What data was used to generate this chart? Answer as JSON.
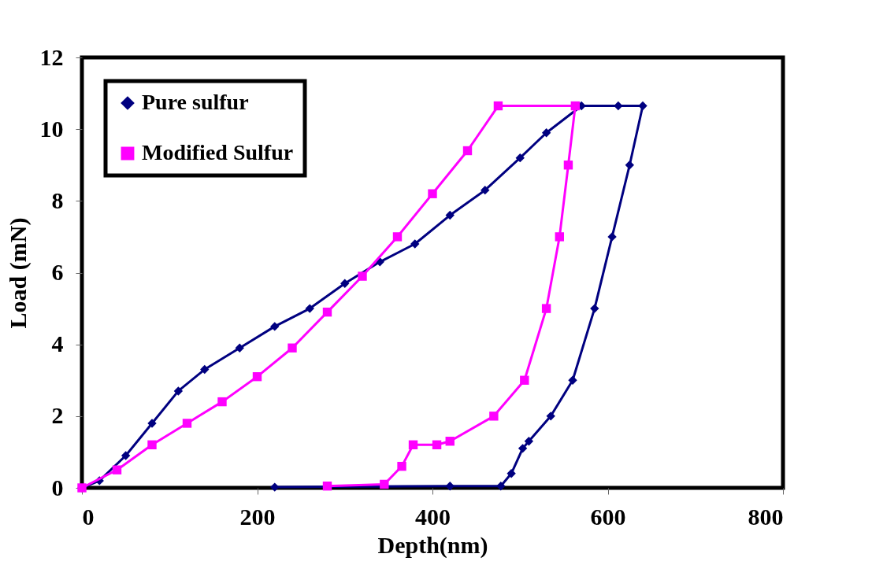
{
  "chart_data": {
    "type": "line",
    "xlabel": "Depth(nm)",
    "ylabel": "Load (mN)",
    "xlim": [
      0,
      800
    ],
    "xticks": [
      0,
      200,
      400,
      600,
      800
    ],
    "ylim": [
      0,
      12
    ],
    "yticks": [
      0,
      2,
      4,
      6,
      8,
      10,
      12
    ],
    "grid": false,
    "legend": "top left",
    "series": [
      {
        "name": "Pure sulfur",
        "color": "#000080",
        "marker": "diamond",
        "x": [
          0,
          20,
          50,
          80,
          110,
          140,
          180,
          220,
          260,
          300,
          340,
          380,
          420,
          460,
          500,
          530,
          570,
          612,
          640,
          625,
          605,
          585,
          560,
          535,
          510,
          503,
          490,
          478,
          420,
          220
        ],
        "values": [
          0,
          0.2,
          0.9,
          1.8,
          2.7,
          3.3,
          3.9,
          4.5,
          5.0,
          5.7,
          6.3,
          6.8,
          7.6,
          8.3,
          9.2,
          9.9,
          10.65,
          10.65,
          10.65,
          9,
          7,
          5,
          3,
          2,
          1.3,
          1.1,
          0.4,
          0.05,
          0.05,
          0.02
        ]
      },
      {
        "name": "Modified Sulfur",
        "color": "#ff00ff",
        "marker": "square",
        "x": [
          0,
          40,
          80,
          120,
          160,
          200,
          240,
          280,
          320,
          360,
          400,
          440,
          475,
          563,
          555,
          545,
          530,
          505,
          470,
          420,
          405,
          378,
          365,
          345,
          280
        ],
        "values": [
          0,
          0.5,
          1.2,
          1.8,
          2.4,
          3.1,
          3.9,
          4.9,
          5.9,
          7.0,
          8.2,
          9.4,
          10.65,
          10.65,
          9,
          7,
          5,
          3,
          2,
          1.3,
          1.2,
          1.2,
          0.6,
          0.1,
          0.05
        ]
      }
    ]
  }
}
